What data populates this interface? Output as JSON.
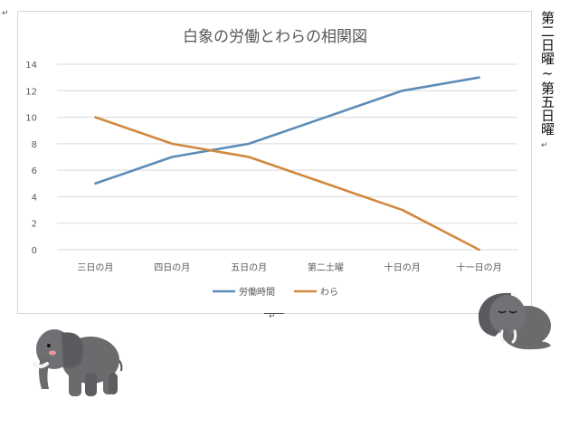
{
  "page": {
    "vertical_caption": "第二日曜~第五日曜",
    "paragraph_mark": "↵"
  },
  "chart_data": {
    "type": "line",
    "title": "白象の労働とわらの相関図",
    "xlabel": "",
    "ylabel": "",
    "categories": [
      "三日の月",
      "四日の月",
      "五日の月",
      "第二土曜",
      "十日の月",
      "十一日の月"
    ],
    "ylim": [
      0,
      14
    ],
    "yticks": [
      0,
      2,
      4,
      6,
      8,
      10,
      12,
      14
    ],
    "grid": true,
    "legend": "bottom",
    "series": [
      {
        "name": "労働時間",
        "values": [
          5,
          7,
          8,
          10,
          12,
          13
        ],
        "color": "#5b8db8"
      },
      {
        "name": "わら",
        "values": [
          10,
          8,
          7,
          5,
          3,
          0
        ],
        "color": "#d1883f"
      }
    ]
  },
  "icons": {
    "left_elephant": "elephant-standing-icon",
    "right_elephant": "elephant-sad-icon"
  },
  "colors": {
    "elephant_body": "#6b6b6e",
    "elephant_shade": "#505055",
    "grid": "#d9d9d9",
    "axis_text": "#595959"
  }
}
